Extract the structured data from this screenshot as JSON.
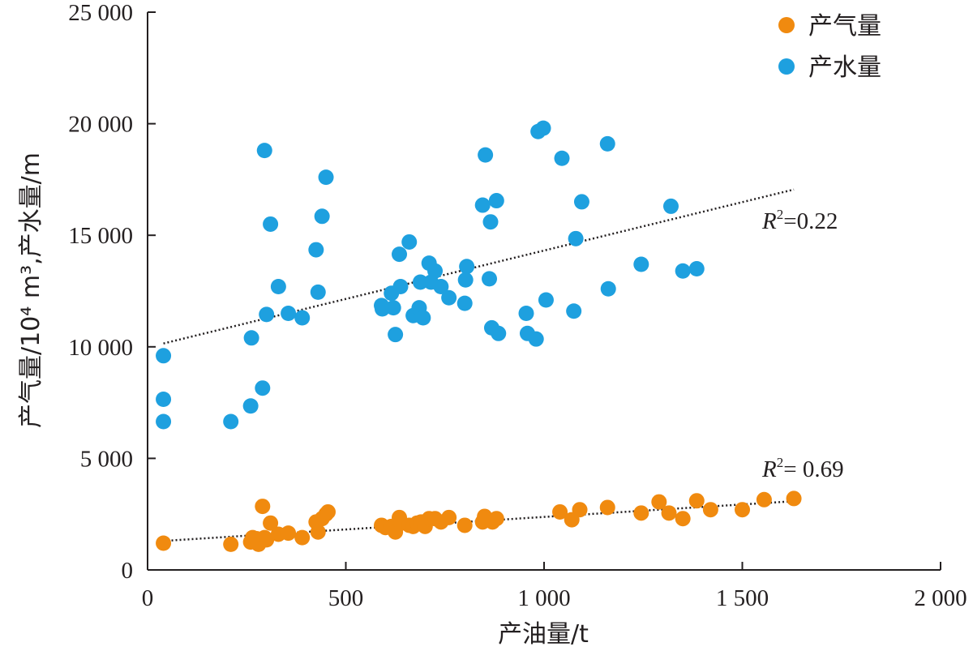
{
  "chart_data": {
    "type": "scatter",
    "xlabel": "产油量/t",
    "ylabel": "产气量/10⁴ m³,产水量/m",
    "xlim": [
      0,
      2000
    ],
    "ylim": [
      0,
      25000
    ],
    "x_ticks": [
      0,
      500,
      1000,
      1500,
      2000
    ],
    "x_tick_labels": [
      "0",
      "500",
      "1 000",
      "1 500",
      "2 000"
    ],
    "y_ticks": [
      0,
      5000,
      10000,
      15000,
      20000,
      25000
    ],
    "y_tick_labels": [
      "0",
      "5 000",
      "10 000",
      "15 000",
      "20 000",
      "25 000"
    ],
    "grid": false,
    "legend_position": "top-right",
    "series": [
      {
        "name": "产气量",
        "color": "#f08a0f",
        "points": [
          [
            40,
            1200
          ],
          [
            210,
            1150
          ],
          [
            260,
            1250
          ],
          [
            265,
            1450
          ],
          [
            275,
            1400
          ],
          [
            280,
            1150
          ],
          [
            290,
            2850
          ],
          [
            295,
            1450
          ],
          [
            300,
            1350
          ],
          [
            310,
            2100
          ],
          [
            330,
            1600
          ],
          [
            355,
            1650
          ],
          [
            390,
            1450
          ],
          [
            425,
            2150
          ],
          [
            430,
            1700
          ],
          [
            440,
            2300
          ],
          [
            450,
            2500
          ],
          [
            455,
            2600
          ],
          [
            590,
            2000
          ],
          [
            600,
            1900
          ],
          [
            615,
            1950
          ],
          [
            625,
            1700
          ],
          [
            635,
            2350
          ],
          [
            640,
            2100
          ],
          [
            660,
            2000
          ],
          [
            670,
            1950
          ],
          [
            680,
            2100
          ],
          [
            690,
            2150
          ],
          [
            700,
            1950
          ],
          [
            710,
            2300
          ],
          [
            725,
            2300
          ],
          [
            740,
            2150
          ],
          [
            760,
            2350
          ],
          [
            800,
            2000
          ],
          [
            845,
            2150
          ],
          [
            850,
            2400
          ],
          [
            870,
            2150
          ],
          [
            880,
            2300
          ],
          [
            1040,
            2600
          ],
          [
            1070,
            2250
          ],
          [
            1090,
            2700
          ],
          [
            1160,
            2800
          ],
          [
            1245,
            2550
          ],
          [
            1290,
            3050
          ],
          [
            1315,
            2550
          ],
          [
            1350,
            2300
          ],
          [
            1385,
            3100
          ],
          [
            1420,
            2700
          ],
          [
            1500,
            2700
          ],
          [
            1555,
            3150
          ],
          [
            1630,
            3200
          ]
        ],
        "trendline": {
          "x": [
            40,
            1630
          ],
          "y": [
            1300,
            3080
          ]
        },
        "r2_label": "R²= 0.69"
      },
      {
        "name": "产水量",
        "color": "#1ea0df",
        "points": [
          [
            40,
            9600
          ],
          [
            40,
            7650
          ],
          [
            40,
            6650
          ],
          [
            210,
            6650
          ],
          [
            260,
            7350
          ],
          [
            262,
            10400
          ],
          [
            290,
            8150
          ],
          [
            295,
            18800
          ],
          [
            300,
            11450
          ],
          [
            310,
            15500
          ],
          [
            330,
            12700
          ],
          [
            355,
            11500
          ],
          [
            390,
            11300
          ],
          [
            425,
            14350
          ],
          [
            430,
            12450
          ],
          [
            440,
            15850
          ],
          [
            450,
            17600
          ],
          [
            590,
            11850
          ],
          [
            592,
            11700
          ],
          [
            615,
            12400
          ],
          [
            620,
            11750
          ],
          [
            625,
            10550
          ],
          [
            635,
            14150
          ],
          [
            638,
            12700
          ],
          [
            660,
            14700
          ],
          [
            670,
            11400
          ],
          [
            685,
            11750
          ],
          [
            688,
            12900
          ],
          [
            695,
            11300
          ],
          [
            710,
            13750
          ],
          [
            715,
            12900
          ],
          [
            725,
            13400
          ],
          [
            740,
            12700
          ],
          [
            760,
            12200
          ],
          [
            800,
            11950
          ],
          [
            802,
            13000
          ],
          [
            805,
            13600
          ],
          [
            845,
            16350
          ],
          [
            852,
            18600
          ],
          [
            862,
            13050
          ],
          [
            865,
            15600
          ],
          [
            868,
            10850
          ],
          [
            880,
            16550
          ],
          [
            885,
            10600
          ],
          [
            955,
            11500
          ],
          [
            958,
            10600
          ],
          [
            985,
            19650
          ],
          [
            998,
            19800
          ],
          [
            980,
            10350
          ],
          [
            1005,
            12100
          ],
          [
            1045,
            18450
          ],
          [
            1075,
            11600
          ],
          [
            1080,
            14850
          ],
          [
            1095,
            16500
          ],
          [
            1160,
            19100
          ],
          [
            1162,
            12600
          ],
          [
            1245,
            13700
          ],
          [
            1320,
            16300
          ],
          [
            1350,
            13400
          ],
          [
            1385,
            13500
          ]
        ],
        "trendline": {
          "x": [
            40,
            1630
          ],
          "y": [
            10150,
            17050
          ]
        },
        "r2_label": "R²=0.22"
      }
    ]
  },
  "legend": {
    "items": [
      {
        "label": "产气量",
        "color": "#f08a0f"
      },
      {
        "label": "产水量",
        "color": "#1ea0df"
      }
    ]
  }
}
